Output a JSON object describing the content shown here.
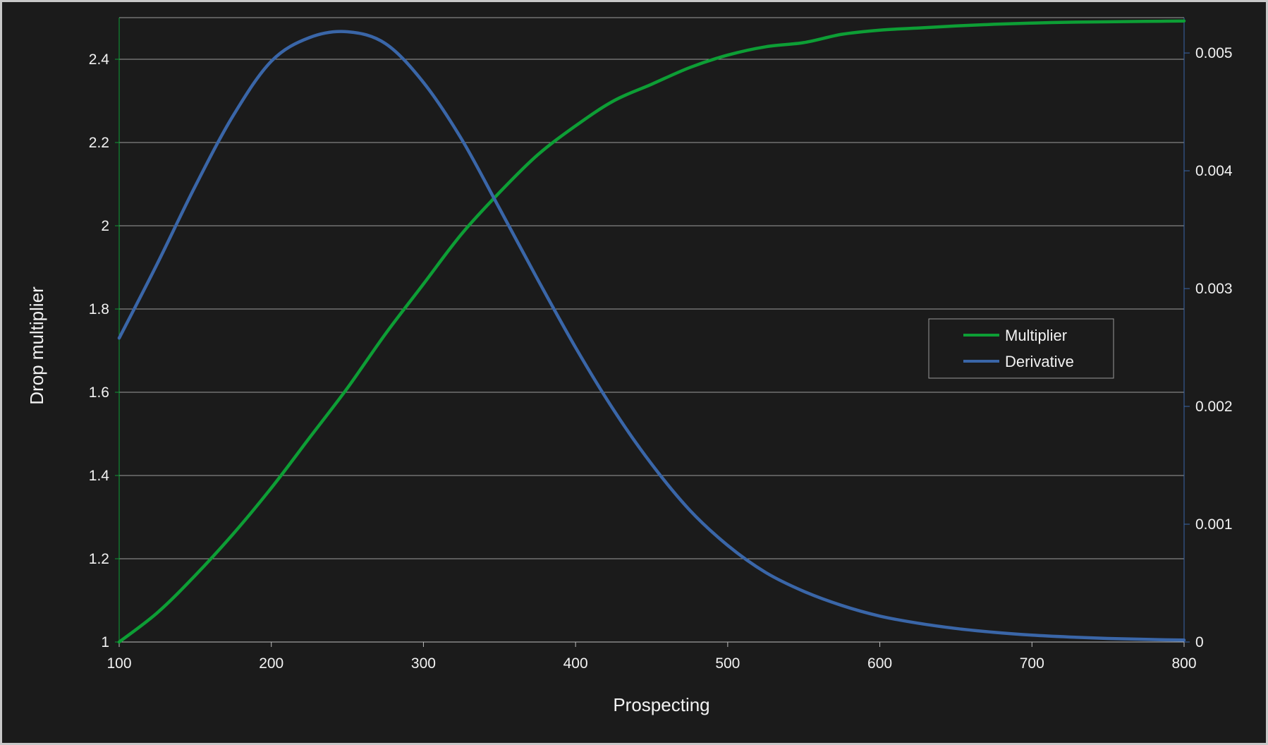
{
  "chart_data": {
    "type": "line",
    "title": "",
    "xlabel": "Prospecting",
    "ylabel": "Drop multiplier",
    "y2label": "",
    "xlim": [
      100,
      800
    ],
    "ylim": [
      1,
      2.5
    ],
    "y2lim": [
      0,
      0.0053
    ],
    "x_ticks": [
      "100",
      "200",
      "300",
      "400",
      "500",
      "600",
      "700",
      "800"
    ],
    "y_ticks": [
      "1",
      "1.2",
      "1.4",
      "1.6",
      "1.8",
      "2",
      "2.2",
      "2.4"
    ],
    "y2_ticks": [
      "0",
      "0.001",
      "0.002",
      "0.003",
      "0.004",
      "0.005"
    ],
    "grid": true,
    "legend_position": "right",
    "x": [
      100,
      125,
      150,
      175,
      200,
      225,
      250,
      275,
      300,
      325,
      350,
      375,
      400,
      425,
      450,
      475,
      500,
      525,
      550,
      575,
      600,
      625,
      650,
      675,
      700,
      725,
      750,
      775,
      800
    ],
    "series": [
      {
        "name": "Multiplier",
        "axis": "left",
        "color": "#0d9e35",
        "values": [
          1.0,
          1.07,
          1.16,
          1.26,
          1.37,
          1.49,
          1.61,
          1.74,
          1.86,
          1.98,
          2.08,
          2.17,
          2.24,
          2.3,
          2.34,
          2.38,
          2.41,
          2.43,
          2.44,
          2.46,
          2.47,
          2.475,
          2.48,
          2.484,
          2.487,
          2.489,
          2.49,
          2.491,
          2.492
        ]
      },
      {
        "name": "Derivative",
        "axis": "right",
        "color": "#3a66a8",
        "values": [
          0.00258,
          0.00321,
          0.00387,
          0.00447,
          0.00493,
          0.00513,
          0.00518,
          0.00508,
          0.00475,
          0.00427,
          0.00368,
          0.00308,
          0.0025,
          0.00197,
          0.00151,
          0.00112,
          0.00082,
          0.00059,
          0.00043,
          0.00031,
          0.00022,
          0.00016,
          0.000115,
          8.2e-05,
          5.8e-05,
          4.2e-05,
          3e-05,
          2.2e-05,
          1.6e-05
        ]
      }
    ]
  }
}
